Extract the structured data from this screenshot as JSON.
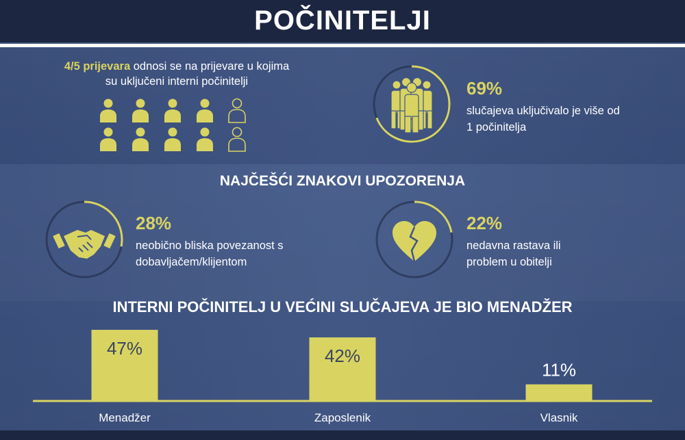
{
  "header": {
    "title": "POČINITELJI"
  },
  "intro": {
    "highlight": "4/5 prijevara",
    "line1_rest": " odnosi se na prijevare u kojima",
    "line2": "su uključeni interni počinitelji",
    "filled_people": 8,
    "total_people": 10
  },
  "stats": {
    "multi": {
      "pct": "69%",
      "line1": "slučajeva uključivalo je više od",
      "line2": "1 počinitelja",
      "value": 0.69,
      "icon": "group-icon"
    },
    "section_title": "NAJČEŠĆI ZNAKOVI UPOZORENJA",
    "close_relation": {
      "pct": "28%",
      "line1": "neobično bliska povezanost s",
      "line2": "dobavljačem/klijentom",
      "value": 0.28,
      "icon": "handshake-icon"
    },
    "divorce": {
      "pct": "22%",
      "line1": "nedavna rastava ili",
      "line2": "problem u obitelji",
      "value": 0.22,
      "icon": "broken-heart-icon"
    }
  },
  "colors": {
    "accent": "#d9d462",
    "background": "#3f5586",
    "header": "#1c2640"
  },
  "chart_data": {
    "type": "bar",
    "title": "INTERNI POČINITELJ U VEĆINI SLUČAJEVA JE BIO MENADŽER",
    "categories": [
      "Menadžer",
      "Zaposlenik",
      "Vlasnik"
    ],
    "values": [
      47,
      42,
      11
    ],
    "value_labels": [
      "47%",
      "42%",
      "11%"
    ],
    "ylim": [
      0,
      47
    ],
    "grid": false
  }
}
